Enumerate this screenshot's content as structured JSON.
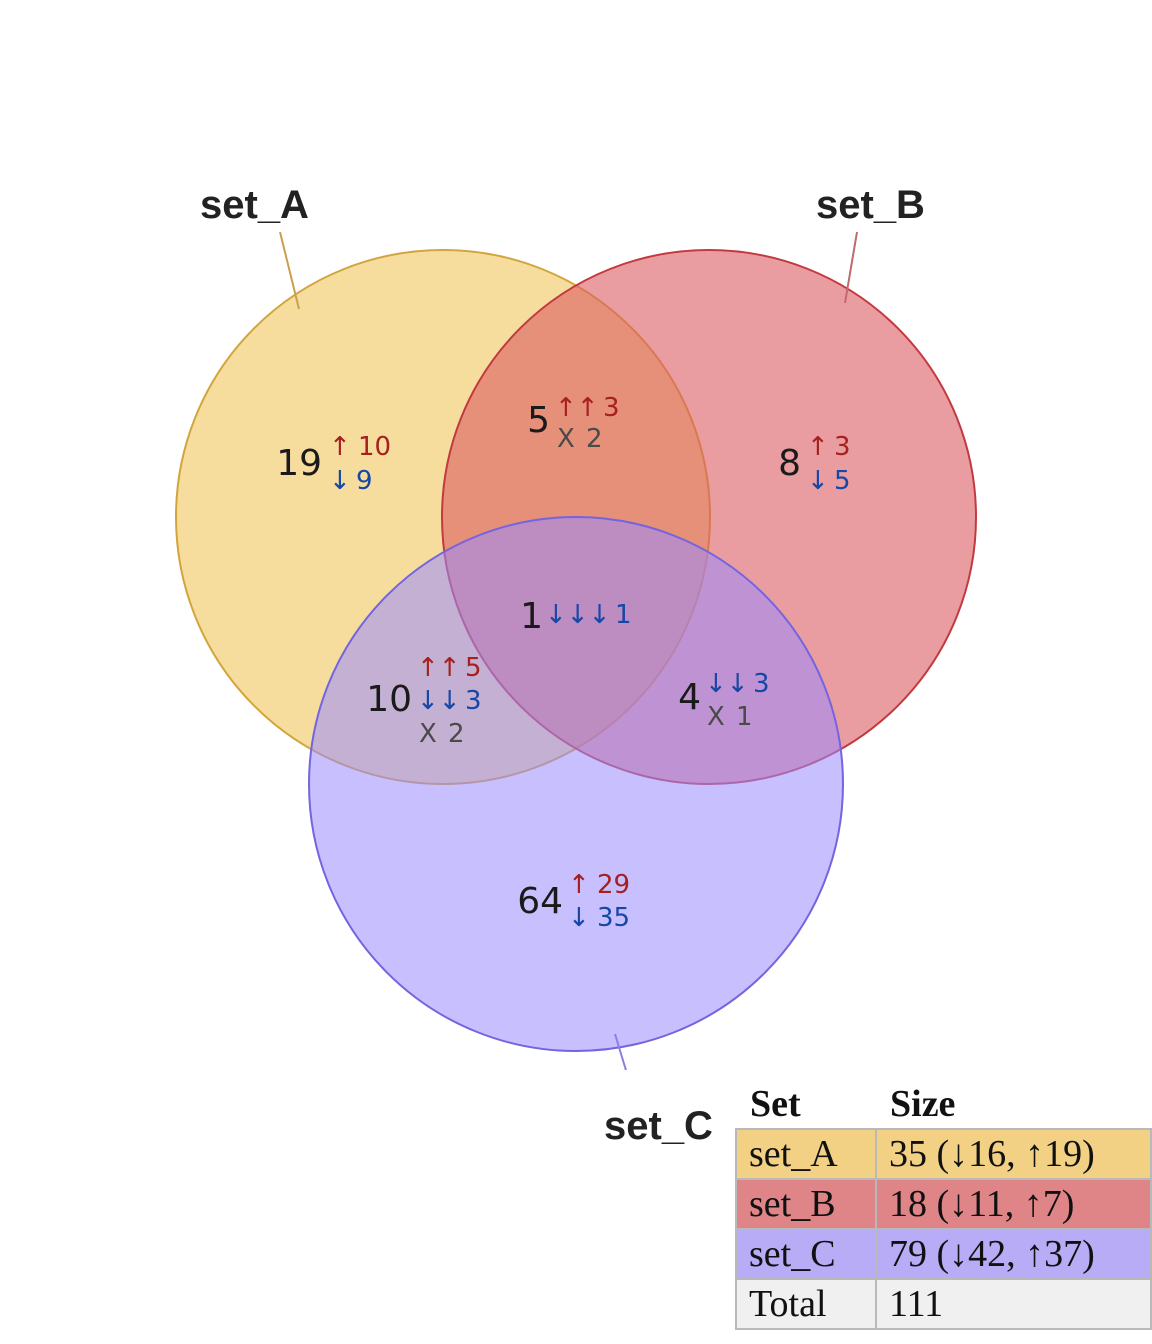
{
  "sets": [
    {
      "name": "set_A",
      "color": "#f0c75e",
      "stroke": "#d2a53c"
    },
    {
      "name": "set_B",
      "color": "#dc5b61",
      "stroke": "#c23a40"
    },
    {
      "name": "set_C",
      "color": "#9a8bfd",
      "stroke": "#7464e0"
    }
  ],
  "regions": {
    "a_only": {
      "count": "19",
      "up": "10",
      "down": "9"
    },
    "b_only": {
      "count": "8",
      "up": "3",
      "down": "5"
    },
    "c_only": {
      "count": "64",
      "up": "29",
      "down": "35"
    },
    "ab": {
      "count": "5",
      "up": "3",
      "mixed": "2"
    },
    "ac": {
      "count": "10",
      "up": "5",
      "down": "3",
      "mixed": "2"
    },
    "bc": {
      "count": "4",
      "down": "3",
      "mixed": "1"
    },
    "abc": {
      "count": "1",
      "down": "1"
    }
  },
  "symbols": {
    "up1": "↑",
    "up2": "↑↑",
    "down1": "↓",
    "down2": "↓↓",
    "down3": "↓↓↓",
    "mixed": "X"
  },
  "table": {
    "header_set": "Set",
    "header_size": "Size",
    "rows": [
      {
        "set": "set_A",
        "size": "35 (↓16, ↑19)"
      },
      {
        "set": "set_B",
        "size": "18 (↓11, ↑7)"
      },
      {
        "set": "set_C",
        "size": "79 (↓42, ↑37)"
      },
      {
        "set": "Total",
        "size": "111"
      }
    ]
  }
}
